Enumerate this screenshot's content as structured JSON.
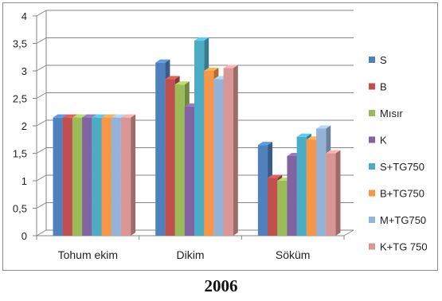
{
  "chart_data": {
    "type": "bar",
    "categories": [
      "Tohum ekim",
      "Dikim",
      "Söküm"
    ],
    "series": [
      {
        "name": "S",
        "color": "#4F81BD",
        "values": [
          2.15,
          3.15,
          1.65
        ]
      },
      {
        "name": "B",
        "color": "#C0504D",
        "values": [
          2.15,
          2.85,
          1.05
        ]
      },
      {
        "name": "Mısır",
        "color": "#9BBB59",
        "values": [
          2.15,
          2.75,
          1.0
        ]
      },
      {
        "name": "K",
        "color": "#8064A2",
        "values": [
          2.15,
          2.35,
          1.45
        ]
      },
      {
        "name": "S+TG750",
        "color": "#4BACC6",
        "values": [
          2.15,
          3.55,
          1.8
        ]
      },
      {
        "name": "B+TG750",
        "color": "#F79646",
        "values": [
          2.15,
          3.0,
          1.75
        ]
      },
      {
        "name": "M+TG750",
        "color": "#95B3D7",
        "values": [
          2.15,
          2.85,
          1.95
        ]
      },
      {
        "name": "K+TG 750",
        "color": "#D99694",
        "values": [
          2.15,
          3.05,
          1.5
        ]
      }
    ],
    "ylim": [
      0,
      4
    ],
    "yticks": [
      0,
      0.5,
      1,
      1.5,
      2,
      2.5,
      3,
      3.5,
      4
    ],
    "ytick_labels": [
      "0",
      "0,5",
      "1",
      "1,5",
      "2",
      "2,5",
      "3",
      "3,5",
      "4"
    ],
    "grid": true,
    "legend_position": "right",
    "three_d": true
  },
  "caption": "2006"
}
